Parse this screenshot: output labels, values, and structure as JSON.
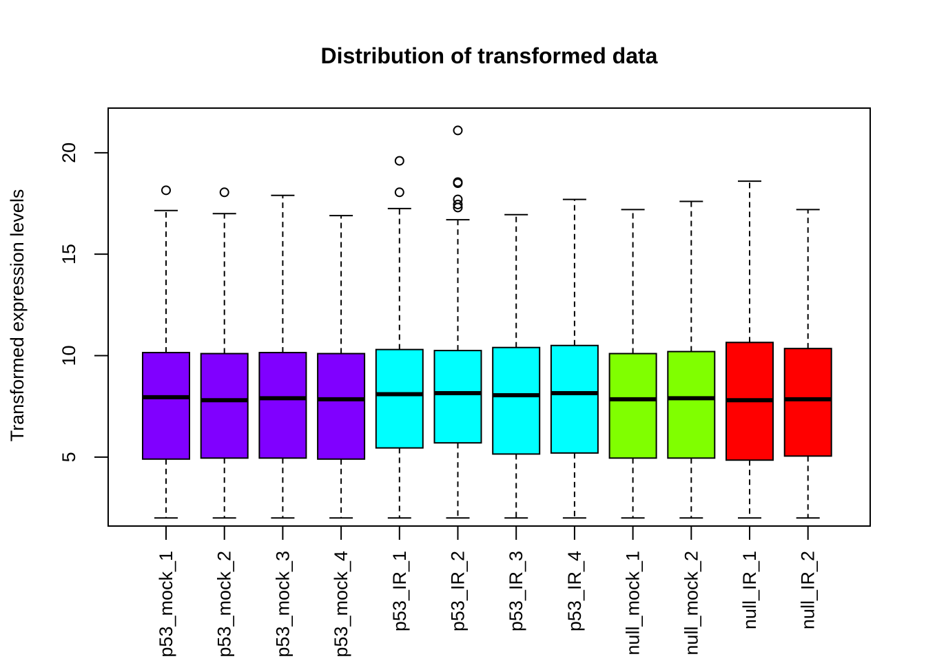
{
  "chart_data": {
    "type": "boxplot",
    "title": "Distribution of transformed data",
    "xlabel": "",
    "ylabel": "Transformed expression levels",
    "ylim": [
      1.6,
      22.2
    ],
    "yticks": [
      5,
      10,
      15,
      20
    ],
    "grid": false,
    "legend": "none",
    "colors": {
      "mock_p53": "#8000FF",
      "ir_p53": "#00FFFF",
      "mock_null": "#80FF00",
      "ir_null": "#FF0000",
      "outline": "#000000"
    },
    "categories": [
      "p53_mock_1",
      "p53_mock_2",
      "p53_mock_3",
      "p53_mock_4",
      "p53_IR_1",
      "p53_IR_2",
      "p53_IR_3",
      "p53_IR_4",
      "null_mock_1",
      "null_mock_2",
      "null_IR_1",
      "null_IR_2"
    ],
    "boxes": [
      {
        "name": "p53_mock_1",
        "min": 2.0,
        "q1": 4.9,
        "median": 7.95,
        "q3": 10.15,
        "max": 17.15,
        "outliers": [
          18.15
        ],
        "color": "#8000FF"
      },
      {
        "name": "p53_mock_2",
        "min": 2.0,
        "q1": 4.95,
        "median": 7.8,
        "q3": 10.1,
        "max": 17.0,
        "outliers": [
          18.05
        ],
        "color": "#8000FF"
      },
      {
        "name": "p53_mock_3",
        "min": 2.0,
        "q1": 4.95,
        "median": 7.9,
        "q3": 10.15,
        "max": 17.9,
        "outliers": [],
        "color": "#8000FF"
      },
      {
        "name": "p53_mock_4",
        "min": 2.0,
        "q1": 4.9,
        "median": 7.85,
        "q3": 10.1,
        "max": 16.9,
        "outliers": [],
        "color": "#8000FF"
      },
      {
        "name": "p53_IR_1",
        "min": 2.0,
        "q1": 5.45,
        "median": 8.1,
        "q3": 10.3,
        "max": 17.25,
        "outliers": [
          18.05,
          19.6
        ],
        "color": "#00FFFF"
      },
      {
        "name": "p53_IR_2",
        "min": 2.0,
        "q1": 5.7,
        "median": 8.15,
        "q3": 10.25,
        "max": 16.7,
        "outliers": [
          17.3,
          17.45,
          17.7,
          18.5,
          18.55,
          21.1
        ],
        "color": "#00FFFF"
      },
      {
        "name": "p53_IR_3",
        "min": 2.0,
        "q1": 5.15,
        "median": 8.05,
        "q3": 10.4,
        "max": 16.95,
        "outliers": [],
        "color": "#00FFFF"
      },
      {
        "name": "p53_IR_4",
        "min": 2.0,
        "q1": 5.2,
        "median": 8.15,
        "q3": 10.5,
        "max": 17.7,
        "outliers": [],
        "color": "#00FFFF"
      },
      {
        "name": "null_mock_1",
        "min": 2.0,
        "q1": 4.95,
        "median": 7.85,
        "q3": 10.1,
        "max": 17.2,
        "outliers": [],
        "color": "#80FF00"
      },
      {
        "name": "null_mock_2",
        "min": 2.0,
        "q1": 4.95,
        "median": 7.9,
        "q3": 10.2,
        "max": 17.6,
        "outliers": [],
        "color": "#80FF00"
      },
      {
        "name": "null_IR_1",
        "min": 2.0,
        "q1": 4.85,
        "median": 7.8,
        "q3": 10.65,
        "max": 18.6,
        "outliers": [],
        "color": "#FF0000"
      },
      {
        "name": "null_IR_2",
        "min": 2.0,
        "q1": 5.05,
        "median": 7.85,
        "q3": 10.35,
        "max": 17.2,
        "outliers": [],
        "color": "#FF0000"
      }
    ]
  }
}
